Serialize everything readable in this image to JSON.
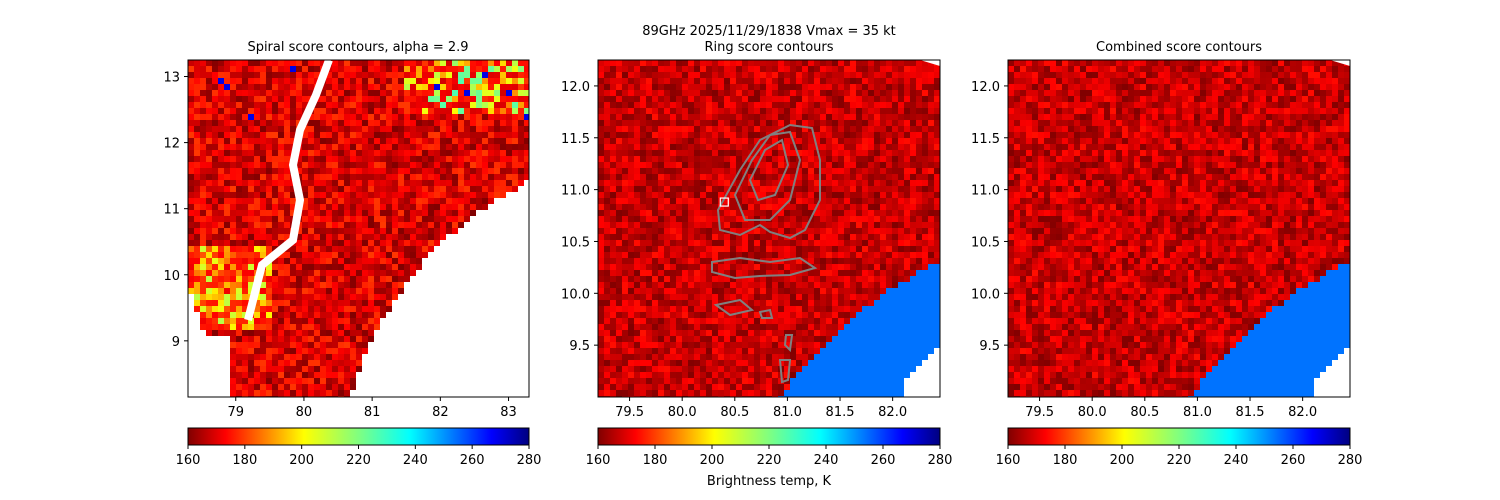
{
  "suptitle": "89GHz  2025/11/29/1838    Vmax = 35 kt",
  "colorbar_label": "Brightness temp, K",
  "colormap": "jet",
  "colors": {
    "swath_fill": "#0073ff",
    "contour": "#808080",
    "marker": "#ffffff"
  },
  "chart_data": [
    {
      "type": "heatmap",
      "title": "Spiral score contours, alpha =  2.9",
      "xlim": [
        78.3,
        83.3
      ],
      "ylim": [
        8.15,
        13.25
      ],
      "xticks": [
        79,
        80,
        81,
        82,
        83
      ],
      "yticks": [
        9,
        10,
        11,
        12,
        13
      ],
      "xtick_labels": [
        "79",
        "80",
        "81",
        "82",
        "83"
      ],
      "ytick_labels": [
        "9",
        "10",
        "11",
        "12",
        "13"
      ],
      "colorbar": {
        "range": [
          160,
          280
        ],
        "ticks": [
          160,
          180,
          200,
          220,
          240,
          260,
          280
        ],
        "tick_labels": [
          "160",
          "180",
          "200",
          "220",
          "240",
          "260",
          "280"
        ]
      }
    },
    {
      "type": "heatmap",
      "title": "Ring score contours",
      "xlim": [
        79.2,
        82.45
      ],
      "ylim": [
        9.0,
        12.25
      ],
      "xticks": [
        79.5,
        80.0,
        80.5,
        81.0,
        81.5,
        82.0
      ],
      "yticks": [
        9.5,
        10.0,
        10.5,
        11.0,
        11.5,
        12.0
      ],
      "xtick_labels": [
        "79.5",
        "80.0",
        "80.5",
        "81.0",
        "81.5",
        "82.0"
      ],
      "ytick_labels": [
        "9.5",
        "10.0",
        "10.5",
        "11.0",
        "11.5",
        "12.0"
      ],
      "fill_value_K": 256,
      "center_marker": {
        "x": 80.4,
        "y": 10.88
      },
      "colorbar": {
        "range": [
          160,
          280
        ],
        "ticks": [
          160,
          180,
          200,
          220,
          240,
          260,
          280
        ],
        "tick_labels": [
          "160",
          "180",
          "200",
          "220",
          "240",
          "260",
          "280"
        ]
      }
    },
    {
      "type": "heatmap",
      "title": "Combined score contours",
      "xlim": [
        79.2,
        82.45
      ],
      "ylim": [
        9.0,
        12.25
      ],
      "xticks": [
        79.5,
        80.0,
        80.5,
        81.0,
        81.5,
        82.0
      ],
      "yticks": [
        9.5,
        10.0,
        10.5,
        11.0,
        11.5,
        12.0
      ],
      "xtick_labels": [
        "79.5",
        "80.0",
        "80.5",
        "81.0",
        "81.5",
        "82.0"
      ],
      "ytick_labels": [
        "9.5",
        "10.0",
        "10.5",
        "11.0",
        "11.5",
        "12.0"
      ],
      "fill_value_K": 256,
      "colorbar": {
        "range": [
          160,
          280
        ],
        "ticks": [
          160,
          180,
          200,
          220,
          240,
          260,
          280
        ],
        "tick_labels": [
          "160",
          "180",
          "200",
          "220",
          "240",
          "260",
          "280"
        ]
      }
    }
  ]
}
